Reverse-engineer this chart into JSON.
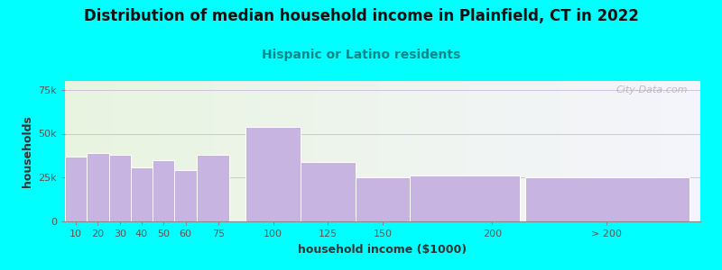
{
  "title": "Distribution of median household income in Plainfield, CT in 2022",
  "subtitle": "Hispanic or Latino residents",
  "xlabel": "household income ($1000)",
  "ylabel": "households",
  "background_color": "#00FFFF",
  "bar_color": "#c8b4e0",
  "bar_edge_color": "#ffffff",
  "values": [
    37000,
    39000,
    38000,
    31000,
    35000,
    29000,
    38000,
    54000,
    34000,
    25000,
    26000,
    25000
  ],
  "bar_lefts": [
    5,
    15,
    25,
    35,
    45,
    55,
    65,
    87.5,
    112.5,
    137.5,
    162.5,
    215
  ],
  "bar_widths": [
    10,
    10,
    10,
    10,
    10,
    10,
    15,
    25,
    25,
    25,
    50,
    75
  ],
  "ylim": [
    0,
    80000
  ],
  "yticks": [
    0,
    25000,
    50000,
    75000
  ],
  "ytick_labels": [
    "0",
    "25k",
    "50k",
    "75k"
  ],
  "xtick_positions": [
    10,
    20,
    30,
    40,
    50,
    60,
    75,
    100,
    125,
    150,
    200,
    252
  ],
  "xtick_labels": [
    "10",
    "20",
    "30",
    "40",
    "50",
    "60",
    "75",
    "100",
    "125",
    "150",
    "200",
    "> 200"
  ],
  "xlim": [
    5,
    295
  ],
  "watermark": "City-Data.com",
  "title_fontsize": 12,
  "subtitle_fontsize": 10,
  "subtitle_color": "#008888",
  "axis_label_fontsize": 9,
  "tick_fontsize": 8
}
